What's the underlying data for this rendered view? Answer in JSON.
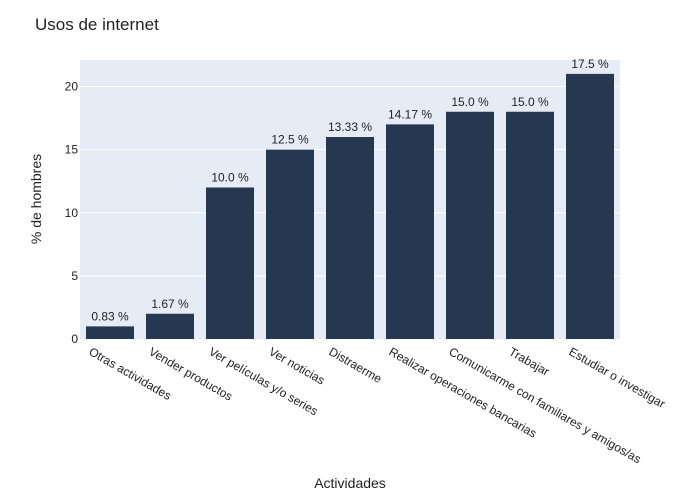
{
  "chart_data": {
    "type": "bar",
    "title": "Usos de internet",
    "xlabel": "Actividades",
    "ylabel": "% de hombres",
    "categories": [
      "Otras actividades",
      "Vender productos",
      "Ver películas y/o series",
      "Ver noticias",
      "Distraerme",
      "Realizar operaciones bancarias",
      "Comunicarme con familiares y amigos/as",
      "Trabajar",
      "Estudiar o investigar"
    ],
    "values": [
      1,
      2,
      12,
      15,
      16,
      17,
      18,
      18,
      21
    ],
    "data_labels": [
      "0.83 %",
      "1.67 %",
      "10.0 %",
      "12.5 %",
      "13.33 %",
      "14.17 %",
      "15.0 %",
      "15.0 %",
      "17.5 %"
    ],
    "ylim": [
      0,
      22.1
    ],
    "yticks": [
      0,
      5,
      10,
      15,
      20
    ],
    "grid": true,
    "colors": {
      "bar": "#263850",
      "plot_bg": "#e5ecf6",
      "grid": "#ffffff"
    }
  }
}
